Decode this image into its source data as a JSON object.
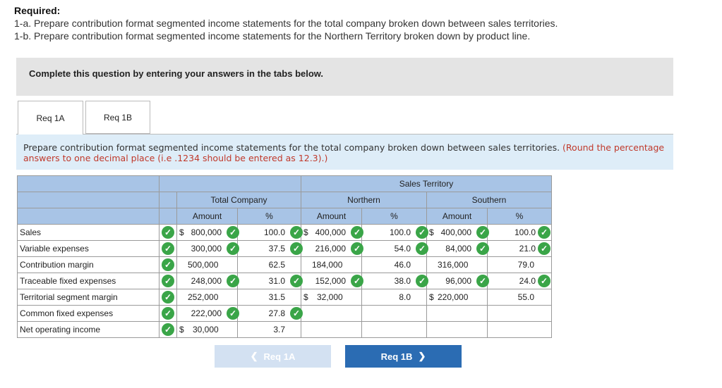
{
  "required": {
    "title": "Required:",
    "line1": "1-a. Prepare contribution format segmented income statements for the total company broken down between sales territories.",
    "line2": "1-b. Prepare contribution format segmented income statements for the Northern Territory broken down by product line."
  },
  "banner": "Complete this question by entering your answers in the tabs below.",
  "tabs": [
    {
      "label": "Req 1A"
    },
    {
      "label": "Req 1B"
    }
  ],
  "instruction": {
    "text": "Prepare contribution format segmented income statements for the total company broken down between sales territories.",
    "note": "(Round the percentage answers to one decimal place (i.e .1234 should be entered as 12.3).)"
  },
  "table": {
    "group_header": "Sales Territory",
    "col_groups": [
      "Total Company",
      "Northern",
      "Southern"
    ],
    "col_labels": [
      "Amount",
      "%",
      "Amount",
      "%",
      "Amount",
      "%"
    ],
    "rows": [
      {
        "label": "Sales",
        "ta": "800,000",
        "ta_dollar": "$",
        "tp": "100.0",
        "na": "400,000",
        "na_dollar": "$",
        "np": "100.0",
        "sa": "400,000",
        "sa_dollar": "$",
        "sp": "100.0"
      },
      {
        "label": "Variable expenses",
        "ta": "300,000",
        "tp": "37.5",
        "na": "216,000",
        "np": "54.0",
        "sa": "84,000",
        "sp": "21.0"
      },
      {
        "label": "Contribution margin",
        "ta": "500,000",
        "tp": "62.5",
        "na": "184,000",
        "np": "46.0",
        "sa": "316,000",
        "sp": "79.0"
      },
      {
        "label": "Traceable fixed expenses",
        "ta": "248,000",
        "tp": "31.0",
        "na": "152,000",
        "np": "38.0",
        "sa": "96,000",
        "sp": "24.0"
      },
      {
        "label": "Territorial segment margin",
        "ta": "252,000",
        "tp": "31.5",
        "na": "32,000",
        "na_dollar": "$",
        "np": "8.0",
        "sa": "220,000",
        "sa_dollar": "$",
        "sp": "55.0"
      },
      {
        "label": "Common fixed expenses",
        "ta": "222,000",
        "tp": "27.8"
      },
      {
        "label": "Net operating income",
        "ta": "30,000",
        "ta_dollar": "$",
        "tp": "3.7"
      }
    ]
  },
  "buttons": {
    "prev": "Req 1A",
    "next": "Req 1B"
  },
  "icons": {
    "check": "check-circle-icon",
    "prev": "chevron-left-icon",
    "next": "chevron-right-icon"
  },
  "colors": {
    "header_bg": "#a8c4e6",
    "check": "#3aa548",
    "next_btn": "#2b6cb3",
    "prev_btn": "#d3e1f2",
    "note": "#c0392b"
  }
}
